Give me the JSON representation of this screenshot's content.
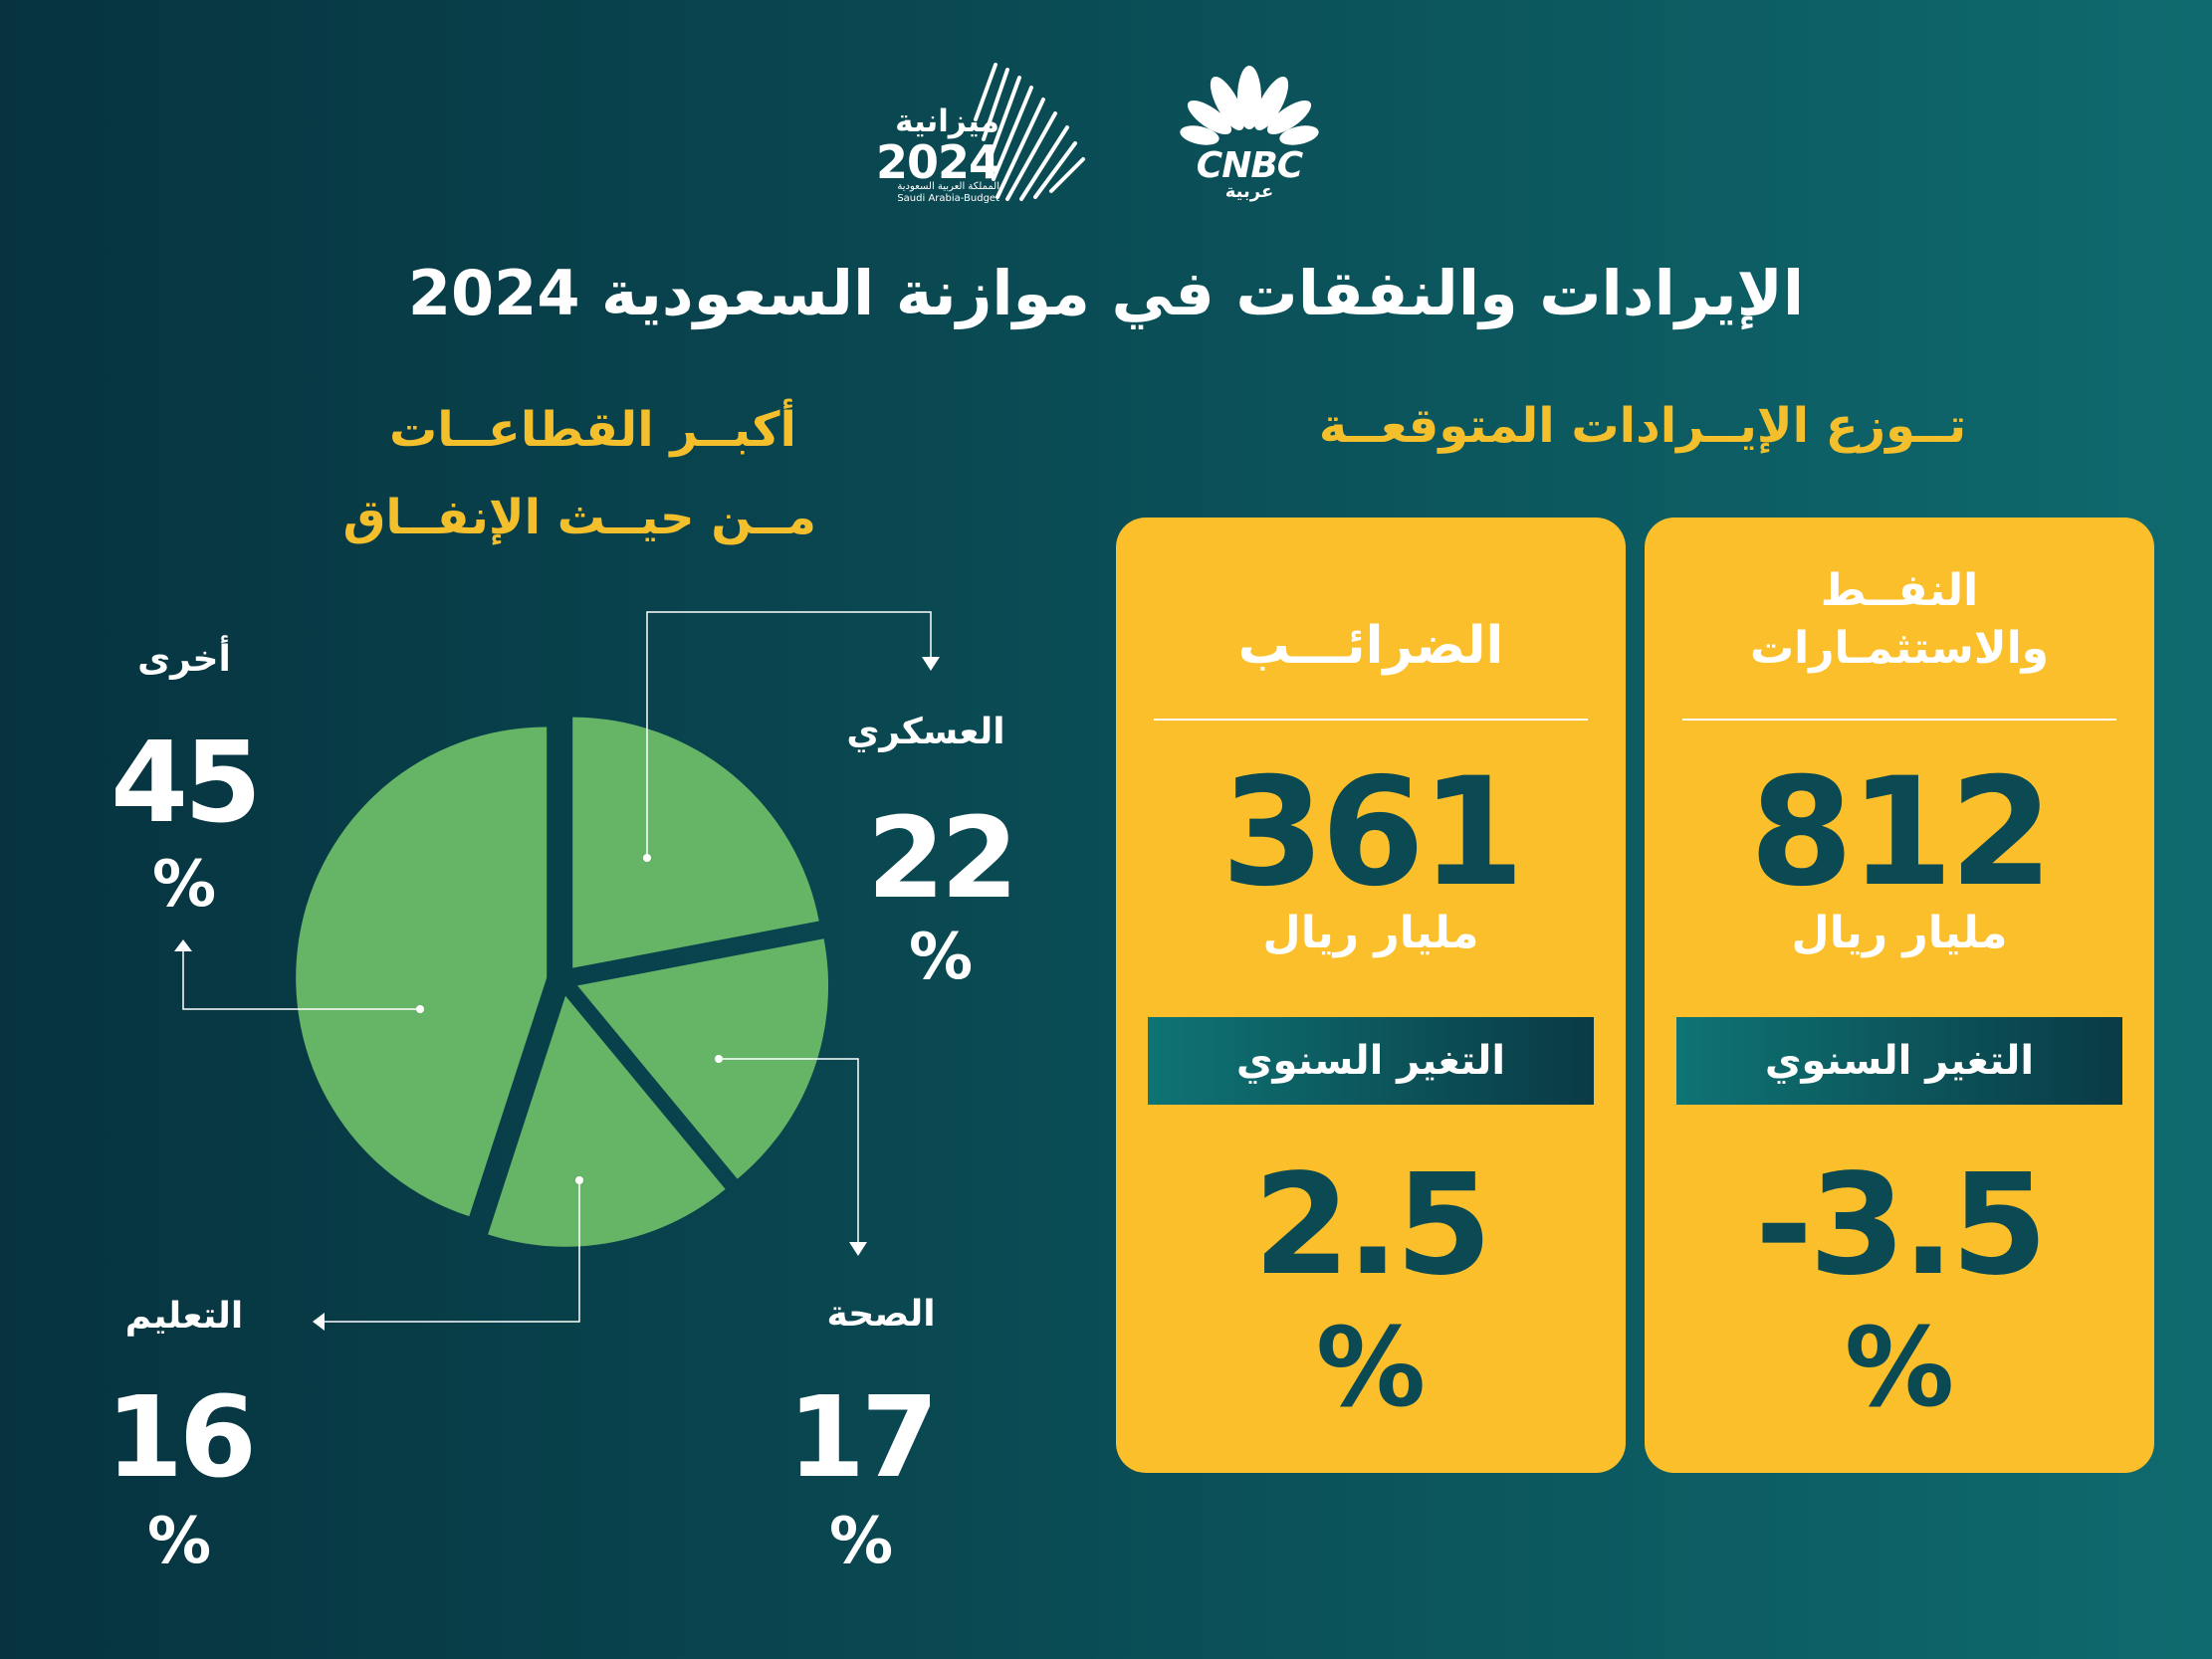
{
  "logos": {
    "budget": {
      "word": "ميزانية",
      "year": "2024",
      "subtitle_ar": "المملكة العربية السعودية",
      "subtitle_en": "Saudi Arabia-Budget"
    },
    "cnbc": {
      "name": "CNBC",
      "arabic": "عربية"
    }
  },
  "title": "الإيرادات والنفقات في موازنة السعودية 2024",
  "revenues": {
    "heading": "تــوزع الإيــرادات المتوقعــة",
    "cards": [
      {
        "label_line1": "النفــط",
        "label_line2": "والاستثمـارات",
        "value": "812",
        "unit": "مليار ريال",
        "change_label": "التغير السنوي",
        "change": "-3.5",
        "change_pct": "%"
      },
      {
        "label_line1": "الضرائـــب",
        "value": "361",
        "unit": "مليار ريال",
        "change_label": "التغير السنوي",
        "change": "2.5",
        "change_pct": "%"
      }
    ]
  },
  "spending": {
    "heading_line1": "أكبــر القطاعــات",
    "heading_line2": "مــن حيــث الإنفــاق",
    "sectors": [
      {
        "name": "العسكري",
        "value": "22",
        "pct": "%"
      },
      {
        "name": "الصحة",
        "value": "17",
        "pct": "%"
      },
      {
        "name": "التعليم",
        "value": "16",
        "pct": "%"
      },
      {
        "name": "أخرى",
        "value": "45",
        "pct": "%"
      }
    ]
  },
  "chart_data": {
    "type": "pie",
    "categories": [
      "العسكري",
      "الصحة",
      "التعليم",
      "أخرى"
    ],
    "values": [
      22,
      17,
      16,
      45
    ]
  },
  "colors": {
    "pie_fill": "#66b567",
    "accent_yellow": "#f4bf2c",
    "card_yellow": "#fbbf2c",
    "teal_text": "#0b4a52"
  }
}
